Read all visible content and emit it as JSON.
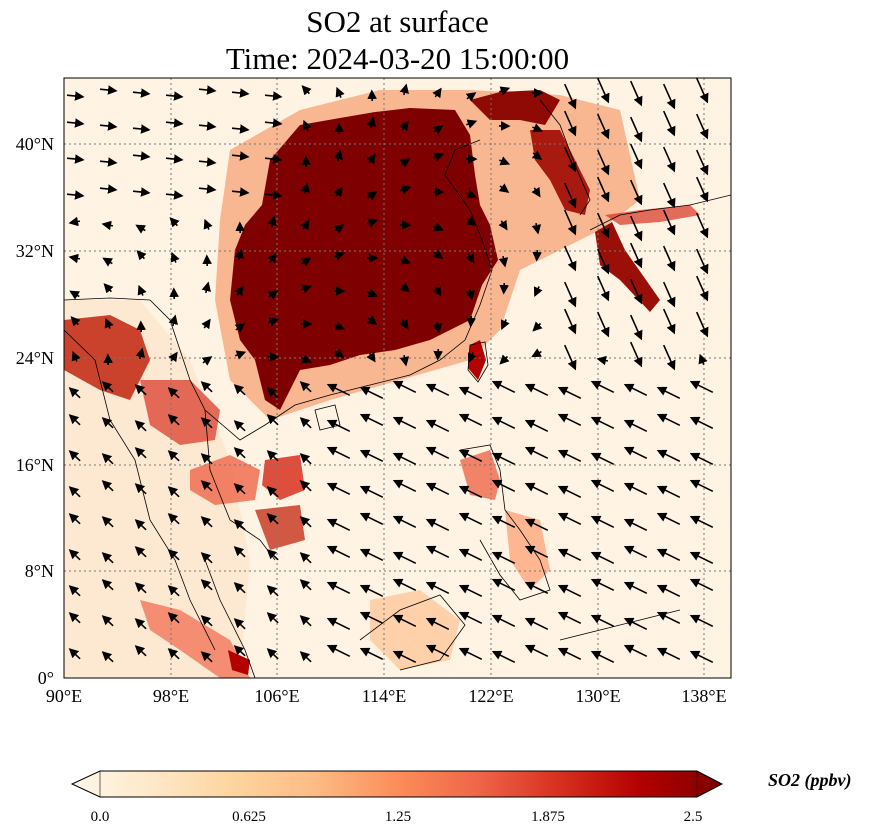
{
  "title": {
    "line1": "SO2 at surface",
    "line2": "Time: 2024-03-20 15:00:00"
  },
  "map": {
    "lon_ticks": [
      "90°E",
      "98°E",
      "106°E",
      "114°E",
      "122°E",
      "130°E",
      "138°E"
    ],
    "lat_ticks": [
      "0°",
      "8°N",
      "16°N",
      "24°N",
      "32°N",
      "40°N"
    ],
    "lon_range": [
      90,
      140
    ],
    "lat_range": [
      0,
      45
    ]
  },
  "colorbar": {
    "label": "SO2 (ppbv)",
    "ticks": [
      "0.0",
      "0.625",
      "1.25",
      "1.875",
      "2.5"
    ],
    "range": [
      0,
      2.5
    ],
    "colormap": "OrRd",
    "colors": [
      "#fff7ec",
      "#fee8c8",
      "#fdd49e",
      "#fdbb84",
      "#fc8d59",
      "#ef6548",
      "#d7301f",
      "#b30000",
      "#7f0000"
    ]
  }
}
